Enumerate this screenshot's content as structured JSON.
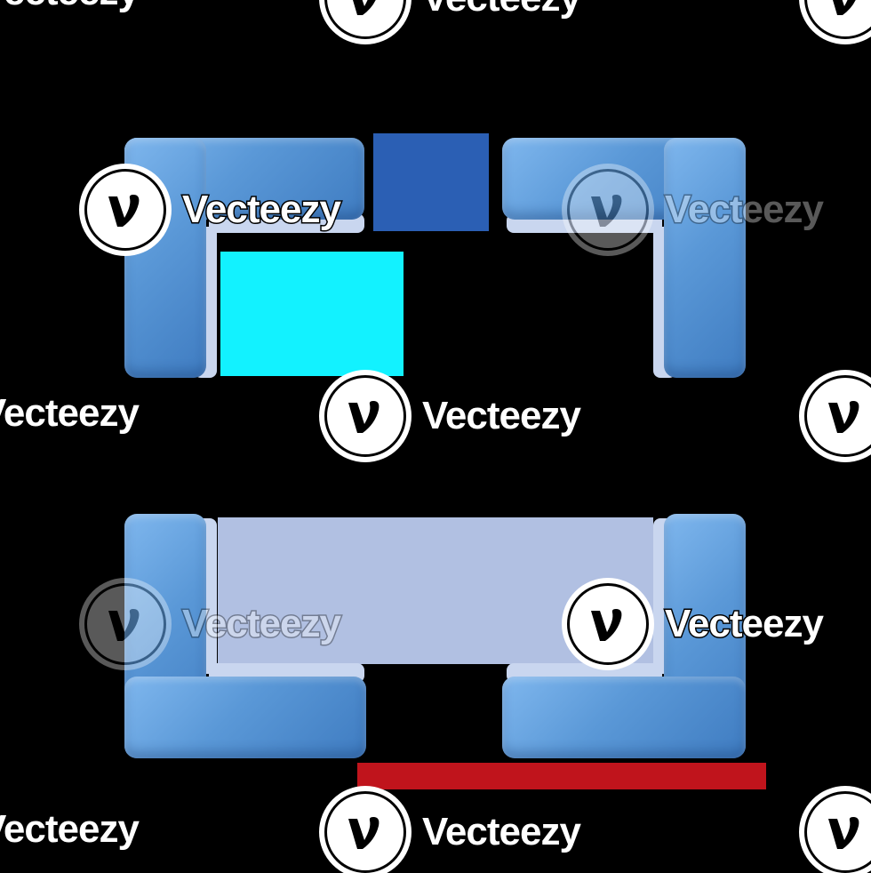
{
  "image": {
    "background": "#000000",
    "bracket_color": "#5a98d7",
    "corners": [
      {
        "name": "top-left-corner-bracket"
      },
      {
        "name": "top-right-corner-bracket"
      },
      {
        "name": "bottom-left-corner-bracket"
      },
      {
        "name": "bottom-right-corner-bracket"
      }
    ]
  },
  "watermark": {
    "brand": "Vecteezy",
    "brand_left_cut": "Vecteezy",
    "icon": "v-logo-icon"
  }
}
